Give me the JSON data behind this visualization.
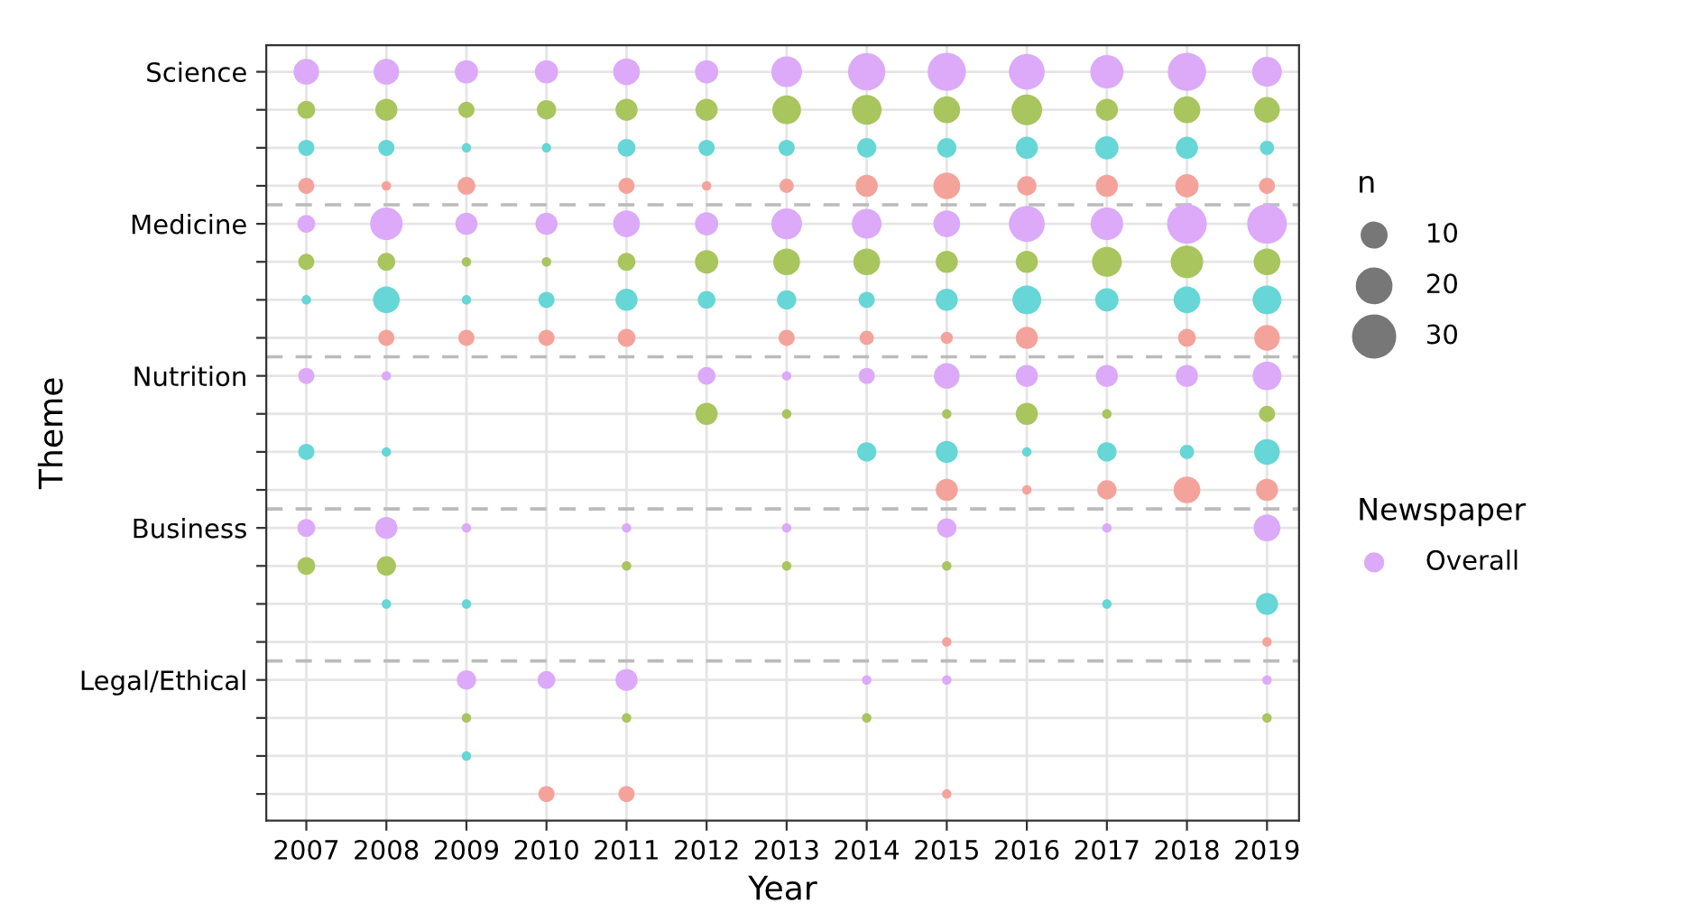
{
  "chart_data": {
    "type": "bubble",
    "orientation": "horizontal",
    "xlabel": "Year",
    "ylabel": "Theme",
    "legend_title": "Newspaper",
    "annotations": [
      "n",
      "Overall"
    ],
    "size_legend": [
      10,
      20,
      30
    ],
    "grid": true,
    "marker": "circle",
    "xlim": [
      2006.5,
      2019.4
    ],
    "xticks": [
      2007,
      2008,
      2009,
      2010,
      2011,
      2012,
      2013,
      2014,
      2015,
      2016,
      2017,
      2018,
      2019
    ],
    "categories": [
      "Science",
      null,
      null,
      null,
      "Medicine",
      null,
      null,
      null,
      "Nutrition",
      null,
      null,
      null,
      "Business",
      null,
      null,
      null,
      "Legal/Ethical",
      null,
      null,
      null
    ],
    "series": [
      {
        "values": [
          2007,
          2007,
          2007,
          2007,
          2007,
          2007,
          2007,
          null,
          2007,
          null,
          2007,
          null,
          2007,
          2007,
          null,
          null,
          null,
          null,
          null,
          null
        ],
        "sizes": [
          11,
          5,
          4,
          4,
          5,
          4,
          1,
          null,
          4,
          null,
          4,
          null,
          5,
          5,
          null,
          null,
          null,
          null,
          null,
          null
        ],
        "colors": [
          "#dcaaf8",
          "#a8c55e",
          "#66d6d6",
          "#f4a39b",
          "#dcaaf8",
          "#a8c55e",
          "#66d6d6",
          "#f4a39b",
          "#dcaaf8",
          "#a8c55e",
          "#66d6d6",
          "#f4a39b",
          "#dcaaf8",
          "#a8c55e",
          "#66d6d6",
          "#f4a39b",
          "#dcaaf8",
          "#a8c55e",
          "#66d6d6",
          "#f4a39b"
        ]
      },
      {
        "values": [
          2008,
          2008,
          2008,
          2008,
          2008,
          2008,
          2008,
          2008,
          2008,
          null,
          2008,
          null,
          2008,
          2008,
          2008,
          null,
          null,
          null,
          null,
          null
        ],
        "sizes": [
          11,
          8,
          4,
          1,
          18,
          5,
          12,
          4,
          1,
          null,
          1,
          null,
          8,
          6,
          1,
          null,
          null,
          null,
          null,
          null
        ],
        "colors": [
          "#dcaaf8",
          "#a8c55e",
          "#66d6d6",
          "#f4a39b",
          "#dcaaf8",
          "#a8c55e",
          "#66d6d6",
          "#f4a39b",
          "#dcaaf8",
          "#a8c55e",
          "#66d6d6",
          "#f4a39b",
          "#dcaaf8",
          "#a8c55e",
          "#66d6d6",
          "#f4a39b",
          "#dcaaf8",
          "#a8c55e",
          "#66d6d6",
          "#f4a39b"
        ]
      },
      {
        "values": [
          2009,
          2009,
          2009,
          2009,
          2009,
          2009,
          2009,
          2009,
          null,
          null,
          null,
          null,
          2009,
          null,
          2009,
          null,
          2009,
          2009,
          2009,
          null
        ],
        "sizes": [
          9,
          4,
          1,
          5,
          8,
          1,
          1,
          4,
          null,
          null,
          null,
          null,
          1,
          null,
          1,
          null,
          6,
          1,
          1,
          null
        ],
        "colors": [
          "#dcaaf8",
          "#a8c55e",
          "#66d6d6",
          "#f4a39b",
          "#dcaaf8",
          "#a8c55e",
          "#66d6d6",
          "#f4a39b",
          "#dcaaf8",
          "#a8c55e",
          "#66d6d6",
          "#f4a39b",
          "#dcaaf8",
          "#a8c55e",
          "#66d6d6",
          "#f4a39b",
          "#dcaaf8",
          "#a8c55e",
          "#66d6d6",
          "#f4a39b"
        ]
      },
      {
        "values": [
          2010,
          2010,
          2010,
          null,
          2010,
          2010,
          2010,
          2010,
          null,
          null,
          null,
          null,
          null,
          null,
          null,
          null,
          2010,
          null,
          null,
          2010
        ],
        "sizes": [
          9,
          6,
          1,
          null,
          8,
          1,
          4,
          4,
          null,
          null,
          null,
          null,
          null,
          null,
          null,
          null,
          5,
          null,
          null,
          4
        ],
        "colors": [
          "#dcaaf8",
          "#a8c55e",
          "#66d6d6",
          "#f4a39b",
          "#dcaaf8",
          "#a8c55e",
          "#66d6d6",
          "#f4a39b",
          "#dcaaf8",
          "#a8c55e",
          "#66d6d6",
          "#f4a39b",
          "#dcaaf8",
          "#a8c55e",
          "#66d6d6",
          "#f4a39b",
          "#dcaaf8",
          "#a8c55e",
          "#66d6d6",
          "#f4a39b"
        ]
      },
      {
        "values": [
          2011,
          2011,
          2011,
          2011,
          2011,
          2011,
          2011,
          2011,
          null,
          null,
          null,
          null,
          2011,
          2011,
          null,
          null,
          2011,
          2011,
          null,
          2011
        ],
        "sizes": [
          12,
          8,
          5,
          4,
          12,
          5,
          8,
          5,
          null,
          null,
          null,
          null,
          1,
          1,
          null,
          null,
          8,
          1,
          null,
          4
        ],
        "colors": [
          "#dcaaf8",
          "#a8c55e",
          "#66d6d6",
          "#f4a39b",
          "#dcaaf8",
          "#a8c55e",
          "#66d6d6",
          "#f4a39b",
          "#dcaaf8",
          "#a8c55e",
          "#66d6d6",
          "#f4a39b",
          "#dcaaf8",
          "#a8c55e",
          "#66d6d6",
          "#f4a39b",
          "#dcaaf8",
          "#a8c55e",
          "#66d6d6",
          "#f4a39b"
        ]
      },
      {
        "values": [
          2012,
          2012,
          2012,
          2012,
          2012,
          2012,
          2012,
          null,
          2012,
          2012,
          null,
          null,
          null,
          null,
          null,
          null,
          null,
          null,
          null,
          null
        ],
        "sizes": [
          9,
          8,
          4,
          1,
          9,
          9,
          5,
          null,
          5,
          8,
          null,
          null,
          null,
          null,
          null,
          null,
          null,
          null,
          null,
          null
        ],
        "colors": [
          "#dcaaf8",
          "#a8c55e",
          "#66d6d6",
          "#f4a39b",
          "#dcaaf8",
          "#a8c55e",
          "#66d6d6",
          "#f4a39b",
          "#dcaaf8",
          "#a8c55e",
          "#66d6d6",
          "#f4a39b",
          "#dcaaf8",
          "#a8c55e",
          "#66d6d6",
          "#f4a39b",
          "#dcaaf8",
          "#a8c55e",
          "#66d6d6",
          "#f4a39b"
        ]
      },
      {
        "values": [
          2013,
          2013,
          2013,
          2013,
          2013,
          2013,
          2013,
          2013,
          2013,
          2013,
          null,
          null,
          2013,
          2013,
          null,
          null,
          null,
          null,
          null,
          null
        ],
        "sizes": [
          16,
          14,
          4,
          3,
          16,
          12,
          6,
          4,
          1,
          1,
          null,
          null,
          1,
          1,
          null,
          null,
          null,
          null,
          null,
          null
        ],
        "colors": [
          "#dcaaf8",
          "#a8c55e",
          "#66d6d6",
          "#f4a39b",
          "#dcaaf8",
          "#a8c55e",
          "#66d6d6",
          "#f4a39b",
          "#dcaaf8",
          "#a8c55e",
          "#66d6d6",
          "#f4a39b",
          "#dcaaf8",
          "#a8c55e",
          "#66d6d6",
          "#f4a39b",
          "#dcaaf8",
          "#a8c55e",
          "#66d6d6",
          "#f4a39b"
        ]
      },
      {
        "values": [
          2014,
          2014,
          2014,
          2014,
          2014,
          2014,
          2014,
          2014,
          2014,
          null,
          2014,
          null,
          null,
          null,
          null,
          null,
          2014,
          2014,
          null,
          null
        ],
        "sizes": [
          24,
          15,
          6,
          8,
          15,
          12,
          4,
          3,
          4,
          null,
          6,
          null,
          null,
          null,
          null,
          null,
          1,
          1,
          null,
          null
        ],
        "colors": [
          "#dcaaf8",
          "#a8c55e",
          "#66d6d6",
          "#f4a39b",
          "#dcaaf8",
          "#a8c55e",
          "#66d6d6",
          "#f4a39b",
          "#dcaaf8",
          "#a8c55e",
          "#66d6d6",
          "#f4a39b",
          "#dcaaf8",
          "#a8c55e",
          "#66d6d6",
          "#f4a39b",
          "#dcaaf8",
          "#a8c55e",
          "#66d6d6",
          "#f4a39b"
        ]
      },
      {
        "values": [
          2015,
          2015,
          2015,
          2015,
          2015,
          2015,
          2015,
          2015,
          2015,
          2015,
          2015,
          2015,
          2015,
          2015,
          null,
          2015,
          2015,
          null,
          null,
          2015
        ],
        "sizes": [
          25,
          12,
          6,
          12,
          12,
          8,
          8,
          2,
          11,
          1,
          8,
          8,
          6,
          1,
          null,
          1,
          1,
          null,
          null,
          1
        ],
        "colors": [
          "#dcaaf8",
          "#a8c55e",
          "#66d6d6",
          "#f4a39b",
          "#dcaaf8",
          "#a8c55e",
          "#66d6d6",
          "#f4a39b",
          "#dcaaf8",
          "#a8c55e",
          "#66d6d6",
          "#f4a39b",
          "#dcaaf8",
          "#a8c55e",
          "#66d6d6",
          "#f4a39b",
          "#dcaaf8",
          "#a8c55e",
          "#66d6d6",
          "#f4a39b"
        ]
      },
      {
        "values": [
          2016,
          2016,
          2016,
          2016,
          2016,
          2016,
          2016,
          2016,
          2016,
          2016,
          2016,
          2016,
          null,
          null,
          null,
          null,
          null,
          null,
          null,
          null
        ],
        "sizes": [
          22,
          16,
          8,
          6,
          22,
          8,
          14,
          8,
          8,
          8,
          1,
          1,
          null,
          null,
          null,
          null,
          null,
          null,
          null,
          null
        ],
        "colors": [
          "#dcaaf8",
          "#a8c55e",
          "#66d6d6",
          "#f4a39b",
          "#dcaaf8",
          "#a8c55e",
          "#66d6d6",
          "#f4a39b",
          "#dcaaf8",
          "#a8c55e",
          "#66d6d6",
          "#f4a39b",
          "#dcaaf8",
          "#a8c55e",
          "#66d6d6",
          "#f4a39b",
          "#dcaaf8",
          "#a8c55e",
          "#66d6d6",
          "#f4a39b"
        ]
      },
      {
        "values": [
          2017,
          2017,
          2017,
          2017,
          2017,
          2017,
          2017,
          null,
          2017,
          2017,
          2017,
          2017,
          2017,
          null,
          2017,
          null,
          null,
          null,
          null,
          null
        ],
        "sizes": [
          19,
          8,
          9,
          8,
          18,
          15,
          9,
          null,
          8,
          1,
          6,
          6,
          1,
          null,
          1,
          null,
          null,
          null,
          null,
          null
        ],
        "colors": [
          "#dcaaf8",
          "#a8c55e",
          "#66d6d6",
          "#f4a39b",
          "#dcaaf8",
          "#a8c55e",
          "#66d6d6",
          "#f4a39b",
          "#dcaaf8",
          "#a8c55e",
          "#66d6d6",
          "#f4a39b",
          "#dcaaf8",
          "#a8c55e",
          "#66d6d6",
          "#f4a39b",
          "#dcaaf8",
          "#a8c55e",
          "#66d6d6",
          "#f4a39b"
        ]
      },
      {
        "values": [
          2018,
          2018,
          2018,
          2018,
          2018,
          2018,
          2018,
          2018,
          2018,
          null,
          2018,
          2018,
          null,
          null,
          null,
          null,
          null,
          null,
          null,
          null
        ],
        "sizes": [
          25,
          12,
          8,
          9,
          27,
          18,
          12,
          5,
          8,
          null,
          3,
          12,
          null,
          null,
          null,
          null,
          null,
          null,
          null,
          null
        ],
        "colors": [
          "#dcaaf8",
          "#a8c55e",
          "#66d6d6",
          "#f4a39b",
          "#dcaaf8",
          "#a8c55e",
          "#66d6d6",
          "#f4a39b",
          "#dcaaf8",
          "#a8c55e",
          "#66d6d6",
          "#f4a39b",
          "#dcaaf8",
          "#a8c55e",
          "#66d6d6",
          "#f4a39b",
          "#dcaaf8",
          "#a8c55e",
          "#66d6d6",
          "#f4a39b"
        ]
      },
      {
        "values": [
          2019,
          2019,
          2019,
          2019,
          2019,
          2019,
          2019,
          2019,
          2019,
          2019,
          2019,
          2019,
          2019,
          null,
          2019,
          2019,
          2019,
          2019,
          null,
          null
        ],
        "sizes": [
          15,
          11,
          3,
          4,
          27,
          12,
          14,
          11,
          14,
          4,
          11,
          8,
          12,
          null,
          8,
          1,
          1,
          1,
          null,
          null
        ],
        "colors": [
          "#dcaaf8",
          "#a8c55e",
          "#66d6d6",
          "#f4a39b",
          "#dcaaf8",
          "#a8c55e",
          "#66d6d6",
          "#f4a39b",
          "#dcaaf8",
          "#a8c55e",
          "#66d6d6",
          "#f4a39b",
          "#dcaaf8",
          "#a8c55e",
          "#66d6d6",
          "#f4a39b",
          "#dcaaf8",
          "#a8c55e",
          "#66d6d6",
          "#f4a39b"
        ]
      }
    ]
  }
}
